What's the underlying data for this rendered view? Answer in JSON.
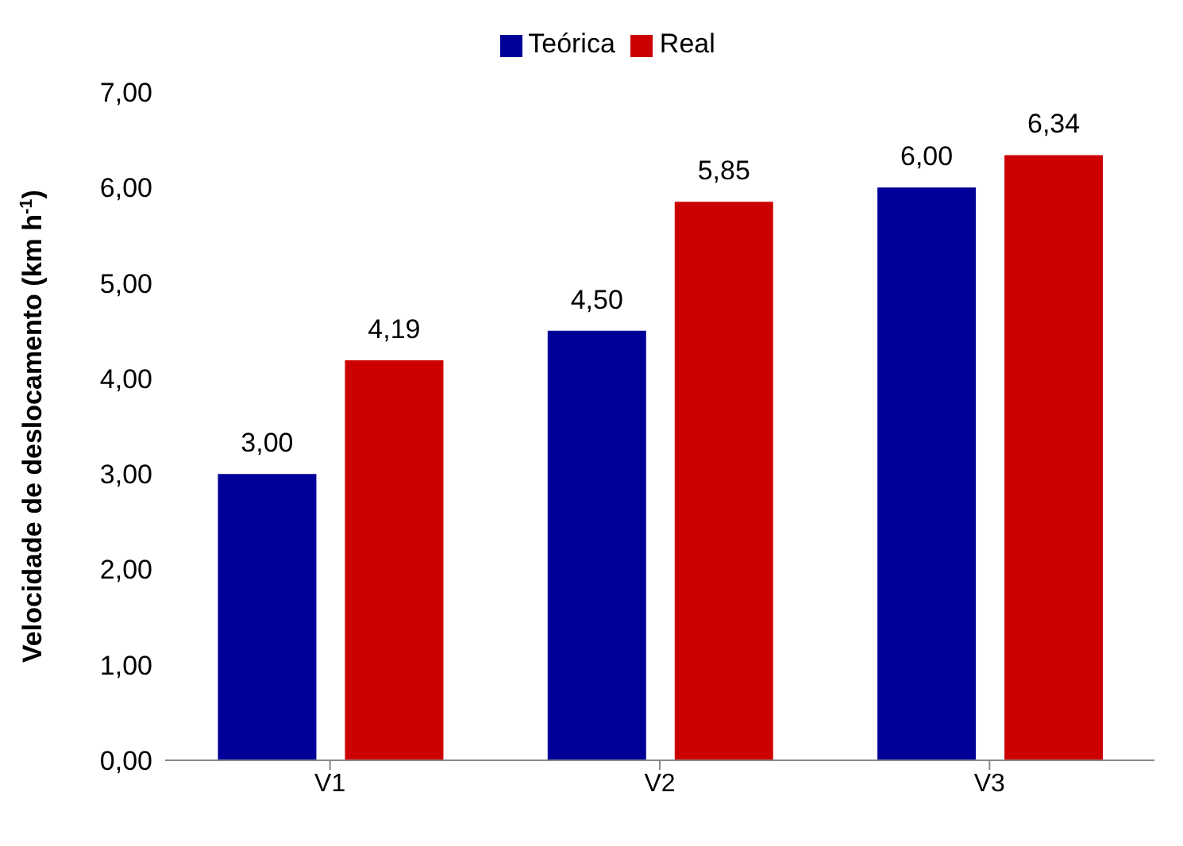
{
  "chart_data": {
    "type": "bar",
    "ylabel": "Velocidade de deslocamento (km h$^{-1}$)",
    "categories": [
      "V1",
      "V2",
      "V3"
    ],
    "series": [
      {
        "name": "Teórica",
        "color": "#000099",
        "values": [
          3.0,
          4.5,
          6.0
        ],
        "value_labels": [
          "3,00",
          "4,50",
          "6,00"
        ]
      },
      {
        "name": "Real",
        "color": "#cc0000",
        "values": [
          4.19,
          5.85,
          6.34
        ],
        "value_labels": [
          "4,19",
          "5,85",
          "6,34"
        ]
      }
    ],
    "ylim": [
      0,
      7
    ],
    "yticks": [
      {
        "value": 0,
        "label": "0,00"
      },
      {
        "value": 1,
        "label": "1,00"
      },
      {
        "value": 2,
        "label": "2,00"
      },
      {
        "value": 3,
        "label": "3,00"
      },
      {
        "value": 4,
        "label": "4,00"
      },
      {
        "value": 5,
        "label": "5,00"
      },
      {
        "value": 6,
        "label": "6,00"
      },
      {
        "value": 7,
        "label": "7,00"
      }
    ],
    "grid": false,
    "legend": "top"
  }
}
